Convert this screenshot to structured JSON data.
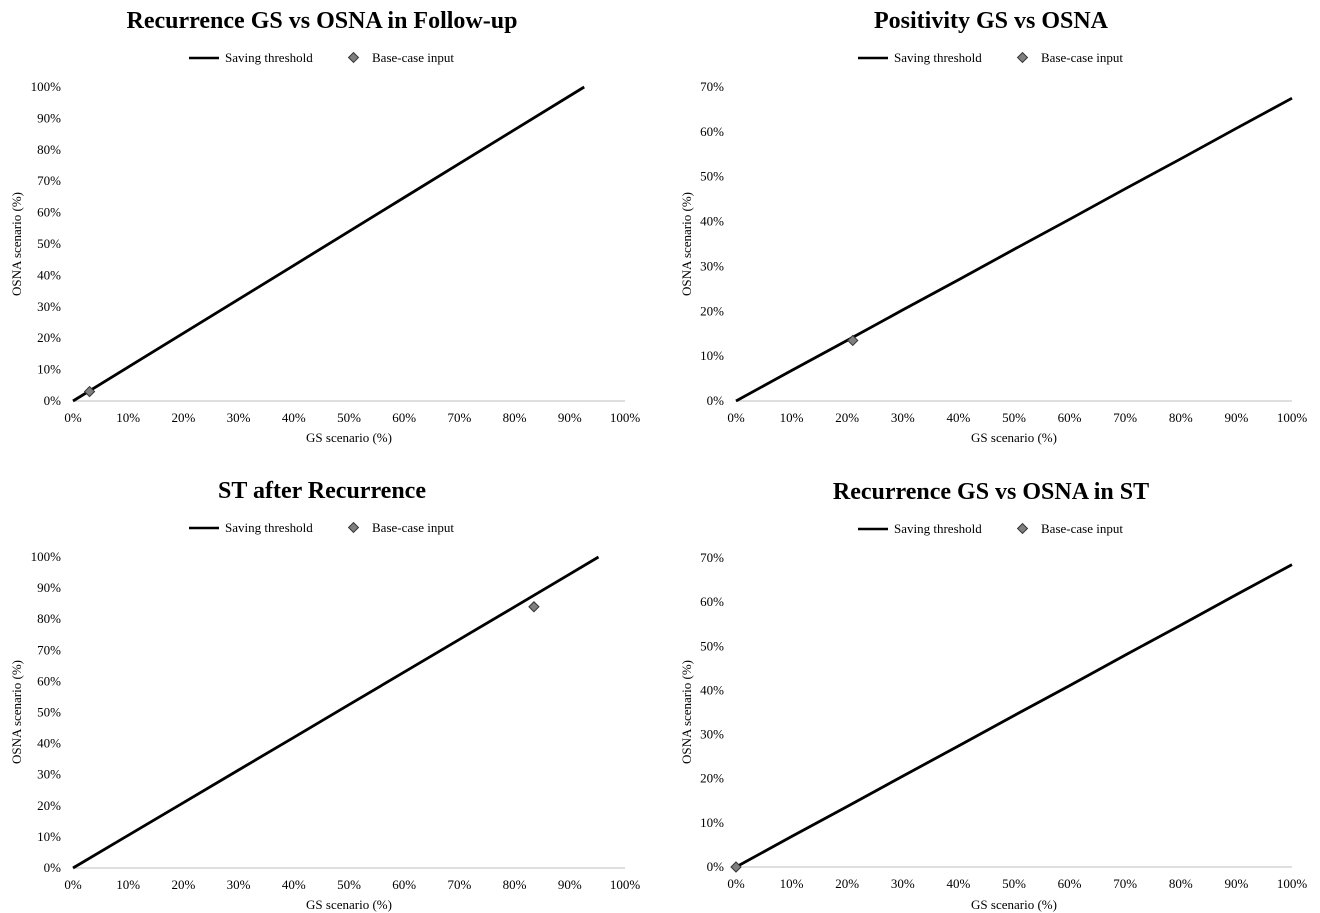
{
  "chart_data": [
    {
      "type": "line",
      "title": "Recurrence GS vs OSNA in Follow-up",
      "xlabel": "GS scenario (%)",
      "ylabel": "OSNA scenario (%)",
      "xlim": [
        0,
        100
      ],
      "ylim": [
        0,
        100
      ],
      "x_ticks": [
        "0%",
        "10%",
        "20%",
        "30%",
        "40%",
        "50%",
        "60%",
        "70%",
        "80%",
        "90%",
        "100%"
      ],
      "y_ticks": [
        "0%",
        "10%",
        "20%",
        "30%",
        "40%",
        "50%",
        "60%",
        "70%",
        "80%",
        "90%",
        "100%"
      ],
      "legend": {
        "placement": "top-center",
        "entries": [
          "Saving threshold",
          "Base-case input"
        ]
      },
      "grid": "horizontal gridline at y=0 only",
      "series": [
        {
          "name": "Saving threshold",
          "kind": "line",
          "color": "#000000",
          "points": [
            [
              0,
              0
            ],
            [
              10,
              10.8
            ],
            [
              20,
              21.6
            ],
            [
              30,
              32.4
            ],
            [
              40,
              43.2
            ],
            [
              50,
              54
            ],
            [
              60,
              64.8
            ],
            [
              70,
              75.6
            ],
            [
              80,
              86.4
            ],
            [
              92.6,
              100
            ]
          ]
        },
        {
          "name": "Base-case input",
          "kind": "marker",
          "color": "#7f7f7f",
          "points": [
            [
              3,
              3
            ]
          ]
        }
      ]
    },
    {
      "type": "line",
      "title": "Positivity GS vs OSNA",
      "xlabel": "GS scenario (%)",
      "ylabel": "OSNA scenario (%)",
      "xlim": [
        0,
        100
      ],
      "ylim": [
        0,
        70
      ],
      "x_ticks": [
        "0%",
        "10%",
        "20%",
        "30%",
        "40%",
        "50%",
        "60%",
        "70%",
        "80%",
        "90%",
        "100%"
      ],
      "y_ticks": [
        "0%",
        "10%",
        "20%",
        "30%",
        "40%",
        "50%",
        "60%",
        "70%"
      ],
      "legend": {
        "placement": "top-center",
        "entries": [
          "Saving threshold",
          "Base-case input"
        ]
      },
      "grid": "horizontal gridline at y=0 only",
      "series": [
        {
          "name": "Saving threshold",
          "kind": "line",
          "color": "#000000",
          "points": [
            [
              0,
              0
            ],
            [
              10,
              6.8
            ],
            [
              20,
              13.5
            ],
            [
              30,
              20.3
            ],
            [
              40,
              27
            ],
            [
              50,
              33.8
            ],
            [
              60,
              40.5
            ],
            [
              70,
              47.3
            ],
            [
              80,
              54
            ],
            [
              90,
              60.8
            ],
            [
              100,
              67.5
            ]
          ]
        },
        {
          "name": "Base-case input",
          "kind": "marker",
          "color": "#7f7f7f",
          "points": [
            [
              21,
              13.5
            ]
          ]
        }
      ]
    },
    {
      "type": "line",
      "title": "ST after Recurrence",
      "xlabel": "GS scenario (%)",
      "ylabel": "OSNA scenario (%)",
      "xlim": [
        0,
        100
      ],
      "ylim": [
        0,
        100
      ],
      "x_ticks": [
        "0%",
        "10%",
        "20%",
        "30%",
        "40%",
        "50%",
        "60%",
        "70%",
        "80%",
        "90%",
        "100%"
      ],
      "y_ticks": [
        "0%",
        "10%",
        "20%",
        "30%",
        "40%",
        "50%",
        "60%",
        "70%",
        "80%",
        "90%",
        "100%"
      ],
      "legend": {
        "placement": "top-center",
        "entries": [
          "Saving threshold",
          "Base-case input"
        ]
      },
      "grid": "horizontal gridline at y=0 only",
      "series": [
        {
          "name": "Saving threshold",
          "kind": "line",
          "color": "#000000",
          "points": [
            [
              0,
              0
            ],
            [
              10,
              10.5
            ],
            [
              20,
              21
            ],
            [
              30,
              31.5
            ],
            [
              40,
              42
            ],
            [
              50,
              52.5
            ],
            [
              60,
              63
            ],
            [
              70,
              73.5
            ],
            [
              80,
              84
            ],
            [
              90,
              94.5
            ],
            [
              95.2,
              100
            ]
          ]
        },
        {
          "name": "Base-case input",
          "kind": "marker",
          "color": "#7f7f7f",
          "points": [
            [
              83.5,
              84
            ]
          ]
        }
      ]
    },
    {
      "type": "line",
      "title": "Recurrence GS vs OSNA in ST",
      "xlabel": "GS scenario (%)",
      "ylabel": "OSNA scenario (%)",
      "xlim": [
        0,
        100
      ],
      "ylim": [
        0,
        70
      ],
      "x_ticks": [
        "0%",
        "10%",
        "20%",
        "30%",
        "40%",
        "50%",
        "60%",
        "70%",
        "80%",
        "90%",
        "100%"
      ],
      "y_ticks": [
        "0%",
        "10%",
        "20%",
        "30%",
        "40%",
        "50%",
        "60%",
        "70%"
      ],
      "legend": {
        "placement": "top-center",
        "entries": [
          "Saving threshold",
          "Base-case input"
        ]
      },
      "grid": "horizontal gridline at y=0 only",
      "series": [
        {
          "name": "Saving threshold",
          "kind": "line",
          "color": "#000000",
          "points": [
            [
              0,
              0
            ],
            [
              10,
              6.9
            ],
            [
              20,
              13.7
            ],
            [
              30,
              20.6
            ],
            [
              40,
              27.4
            ],
            [
              50,
              34.3
            ],
            [
              60,
              41.1
            ],
            [
              70,
              48
            ],
            [
              80,
              54.8
            ],
            [
              90,
              61.7
            ],
            [
              100,
              68.5
            ]
          ]
        },
        {
          "name": "Base-case input",
          "kind": "marker",
          "color": "#7f7f7f",
          "points": [
            [
              0,
              0
            ]
          ]
        }
      ]
    }
  ]
}
